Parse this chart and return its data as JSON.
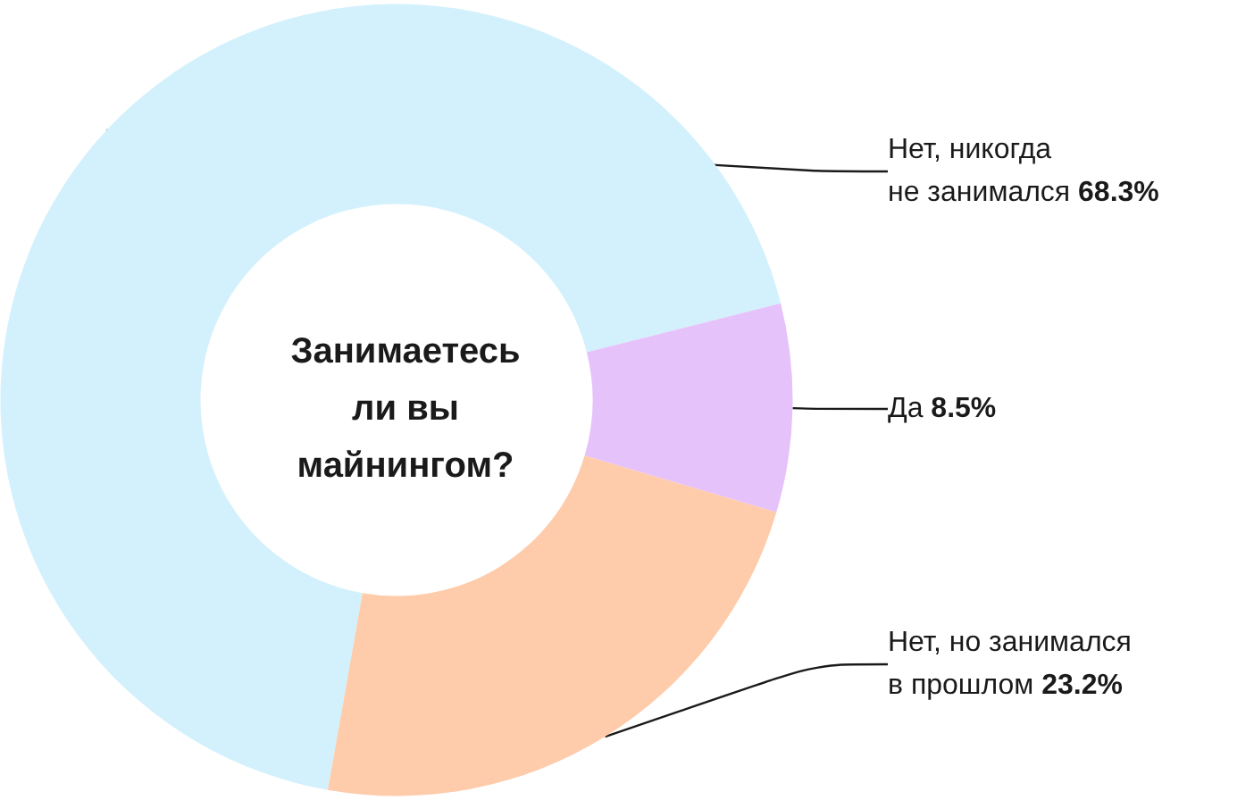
{
  "chart_data": {
    "type": "donut",
    "title": "Занимаетесь ли вы майнингом?",
    "categories": [
      "Нет, никогда не занимался",
      "Да",
      "Нет, но занимался в прошлом"
    ],
    "values": [
      68.3,
      8.5,
      23.2
    ],
    "value_labels": [
      "68.3%",
      "8.5%",
      "23.2%"
    ],
    "colors": [
      "#d3f1fc",
      "#e6c2fb",
      "#fecbab"
    ],
    "data_labels": true,
    "legend": false
  }
}
